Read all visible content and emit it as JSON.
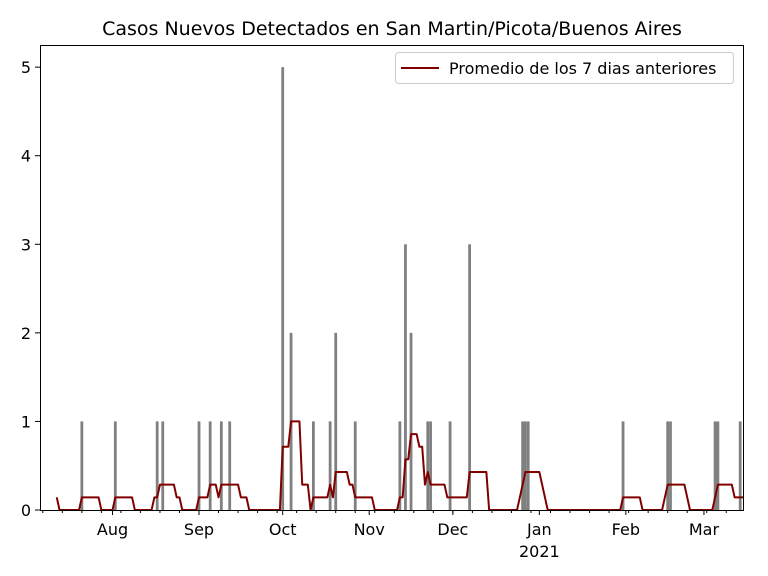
{
  "chart_data": {
    "type": "bar",
    "title": "Casos Nuevos Detectados en San Martin/Picota/Buenos Aires",
    "xlabel": "",
    "ylabel": "",
    "x_range": [
      "2020-07-06",
      "2021-03-15"
    ],
    "ylim": [
      0,
      5.25
    ],
    "yticks": [
      0,
      1,
      2,
      3,
      4,
      5
    ],
    "xticks": [
      {
        "date": "2020-08-01",
        "label": "Aug"
      },
      {
        "date": "2020-09-01",
        "label": "Sep"
      },
      {
        "date": "2020-10-01",
        "label": "Oct"
      },
      {
        "date": "2020-11-01",
        "label": "Nov"
      },
      {
        "date": "2020-12-01",
        "label": "Dec"
      },
      {
        "date": "2021-01-01",
        "label": "Jan",
        "sublabel": "2021"
      },
      {
        "date": "2021-02-01",
        "label": "Feb"
      },
      {
        "date": "2021-03-01",
        "label": "Mar"
      }
    ],
    "grid": false,
    "legend_position": "top-right",
    "bar_color": "#808080",
    "line_color": "#800000",
    "series": [
      {
        "kind": "bar",
        "x": [
          "2020-07-21",
          "2020-08-02",
          "2020-08-17",
          "2020-08-19",
          "2020-09-01",
          "2020-09-05",
          "2020-09-09",
          "2020-09-12",
          "2020-10-01",
          "2020-10-04",
          "2020-10-12",
          "2020-10-18",
          "2020-10-20",
          "2020-10-27",
          "2020-11-12",
          "2020-11-14",
          "2020-11-16",
          "2020-11-22",
          "2020-11-23",
          "2020-11-30",
          "2020-12-07",
          "2020-12-26",
          "2020-12-27",
          "2020-12-28",
          "2021-01-31",
          "2021-02-16",
          "2021-02-17",
          "2021-03-05",
          "2021-03-06",
          "2021-03-14"
        ],
        "values": [
          1,
          1,
          1,
          1,
          1,
          1,
          1,
          1,
          5,
          2,
          1,
          1,
          2,
          1,
          1,
          3,
          2,
          1,
          1,
          1,
          3,
          1,
          1,
          1,
          1,
          1,
          1,
          1,
          1,
          1
        ]
      },
      {
        "kind": "line",
        "name": "Promedio de los 7 dias anteriores",
        "x": [
          "2020-07-12",
          "2020-07-13",
          "2020-07-20",
          "2020-07-21",
          "2020-07-27",
          "2020-07-28",
          "2020-08-01",
          "2020-08-02",
          "2020-08-08",
          "2020-08-09",
          "2020-08-15",
          "2020-08-16",
          "2020-08-17",
          "2020-08-18",
          "2020-08-19",
          "2020-08-23",
          "2020-08-24",
          "2020-08-25",
          "2020-08-26",
          "2020-08-31",
          "2020-09-01",
          "2020-09-04",
          "2020-09-05",
          "2020-09-07",
          "2020-09-08",
          "2020-09-09",
          "2020-09-11",
          "2020-09-12",
          "2020-09-15",
          "2020-09-16",
          "2020-09-18",
          "2020-09-19",
          "2020-09-30",
          "2020-10-01",
          "2020-10-03",
          "2020-10-04",
          "2020-10-07",
          "2020-10-08",
          "2020-10-10",
          "2020-10-11",
          "2020-10-12",
          "2020-10-17",
          "2020-10-18",
          "2020-10-19",
          "2020-10-20",
          "2020-10-24",
          "2020-10-25",
          "2020-10-26",
          "2020-10-27",
          "2020-11-02",
          "2020-11-03",
          "2020-11-11",
          "2020-11-12",
          "2020-11-13",
          "2020-11-14",
          "2020-11-15",
          "2020-11-16",
          "2020-11-18",
          "2020-11-19",
          "2020-11-20",
          "2020-11-21",
          "2020-11-22",
          "2020-11-23",
          "2020-11-28",
          "2020-11-29",
          "2020-11-30",
          "2020-12-05",
          "2020-12-06",
          "2020-12-07",
          "2020-12-13",
          "2020-12-14",
          "2020-12-24",
          "2020-12-25",
          "2020-12-26",
          "2020-12-27",
          "2021-01-01",
          "2021-01-02",
          "2021-01-03",
          "2021-01-04",
          "2021-01-30",
          "2021-01-31",
          "2021-02-06",
          "2021-02-07",
          "2021-02-14",
          "2021-02-15",
          "2021-02-16",
          "2021-02-17",
          "2021-02-22",
          "2021-02-23",
          "2021-02-24",
          "2021-03-04",
          "2021-03-05",
          "2021-03-06",
          "2021-03-11",
          "2021-03-12",
          "2021-03-13",
          "2021-03-14",
          "2021-03-15"
        ],
        "values": [
          0.143,
          0,
          0,
          0.143,
          0.143,
          0,
          0,
          0.143,
          0.143,
          0,
          0,
          0.143,
          0.143,
          0.286,
          0.286,
          0.286,
          0.143,
          0.143,
          0,
          0,
          0.143,
          0.143,
          0.286,
          0.286,
          0.143,
          0.286,
          0.286,
          0.286,
          0.286,
          0.143,
          0.143,
          0,
          0,
          0.714,
          0.714,
          1,
          1,
          0.286,
          0.286,
          0,
          0.143,
          0.143,
          0.286,
          0.143,
          0.429,
          0.429,
          0.286,
          0.286,
          0.143,
          0.143,
          0,
          0,
          0.143,
          0.143,
          0.571,
          0.571,
          0.857,
          0.857,
          0.714,
          0.714,
          0.286,
          0.429,
          0.286,
          0.286,
          0.143,
          0.143,
          0.143,
          0.143,
          0.429,
          0.429,
          0,
          0,
          0.143,
          0.286,
          0.429,
          0.429,
          0.286,
          0.143,
          0,
          0,
          0.143,
          0.143,
          0,
          0,
          0.143,
          0.286,
          0.286,
          0.286,
          0.143,
          0,
          0,
          0.143,
          0.286,
          0.286,
          0.143,
          0.143,
          0.143,
          0.143
        ]
      }
    ]
  }
}
